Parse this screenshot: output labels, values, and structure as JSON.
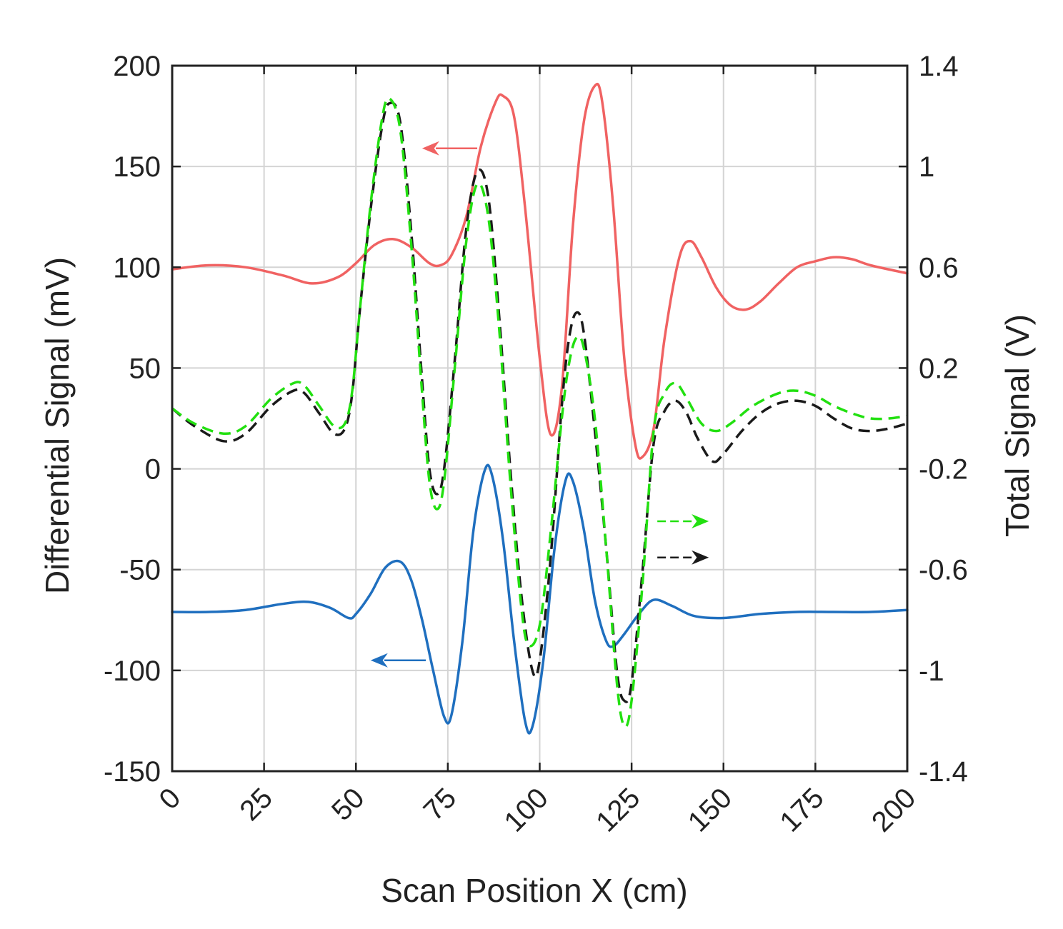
{
  "chart_data": {
    "type": "line",
    "xlabel": "Scan Position X (cm)",
    "ylabel": "Differential Signal (mV)",
    "y2label": "Total Signal (V)",
    "xlim": [
      0,
      200
    ],
    "ylim": [
      -150,
      200
    ],
    "y2lim": [
      -1.4,
      1.4
    ],
    "xticks": [
      "0",
      "25",
      "50",
      "75",
      "100",
      "125",
      "150",
      "175",
      "200"
    ],
    "yticks": [
      "-150",
      "-100",
      "-50",
      "0",
      "50",
      "100",
      "150",
      "200"
    ],
    "y2ticks": [
      "-1.4",
      "-1",
      "-0.6",
      "-0.2",
      "0.2",
      "0.6",
      "1",
      "1.4"
    ],
    "grid": true,
    "series": [
      {
        "axis": "left",
        "color": "#f06262",
        "style": "solid",
        "points": [
          [
            0,
            99
          ],
          [
            10,
            101
          ],
          [
            20,
            100
          ],
          [
            30,
            96
          ],
          [
            38,
            92
          ],
          [
            45,
            95
          ],
          [
            50,
            102
          ],
          [
            55,
            111
          ],
          [
            60,
            114
          ],
          [
            65,
            110
          ],
          [
            70,
            102
          ],
          [
            73,
            101
          ],
          [
            76,
            106
          ],
          [
            80,
            125
          ],
          [
            84,
            160
          ],
          [
            88,
            182
          ],
          [
            90,
            185
          ],
          [
            93,
            175
          ],
          [
            96,
            130
          ],
          [
            100,
            55
          ],
          [
            103,
            17
          ],
          [
            106,
            40
          ],
          [
            109,
            120
          ],
          [
            112,
            172
          ],
          [
            115,
            190
          ],
          [
            117,
            182
          ],
          [
            120,
            130
          ],
          [
            123,
            55
          ],
          [
            126,
            12
          ],
          [
            128,
            6
          ],
          [
            131,
            20
          ],
          [
            134,
            65
          ],
          [
            138,
            105
          ],
          [
            141,
            113
          ],
          [
            144,
            105
          ],
          [
            148,
            90
          ],
          [
            152,
            81
          ],
          [
            156,
            79
          ],
          [
            160,
            83
          ],
          [
            165,
            92
          ],
          [
            170,
            100
          ],
          [
            175,
            103
          ],
          [
            180,
            105
          ],
          [
            185,
            104
          ],
          [
            190,
            101
          ],
          [
            200,
            97
          ]
        ]
      },
      {
        "axis": "left",
        "color": "#1f6fbf",
        "style": "solid",
        "points": [
          [
            0,
            -71
          ],
          [
            10,
            -71
          ],
          [
            20,
            -70
          ],
          [
            30,
            -67
          ],
          [
            37,
            -66
          ],
          [
            43,
            -69
          ],
          [
            48,
            -74
          ],
          [
            50,
            -72
          ],
          [
            54,
            -62
          ],
          [
            58,
            -49
          ],
          [
            62,
            -46
          ],
          [
            65,
            -55
          ],
          [
            68,
            -75
          ],
          [
            71,
            -100
          ],
          [
            74,
            -123
          ],
          [
            76,
            -122
          ],
          [
            79,
            -85
          ],
          [
            82,
            -30
          ],
          [
            85,
            -1
          ],
          [
            87,
            -3
          ],
          [
            90,
            -35
          ],
          [
            93,
            -85
          ],
          [
            96,
            -125
          ],
          [
            98,
            -128
          ],
          [
            101,
            -95
          ],
          [
            104,
            -40
          ],
          [
            107,
            -6
          ],
          [
            109,
            -6
          ],
          [
            112,
            -30
          ],
          [
            115,
            -65
          ],
          [
            118,
            -85
          ],
          [
            120,
            -88
          ],
          [
            123,
            -82
          ],
          [
            127,
            -72
          ],
          [
            131,
            -65
          ],
          [
            136,
            -68
          ],
          [
            142,
            -73
          ],
          [
            150,
            -74
          ],
          [
            160,
            -72
          ],
          [
            170,
            -71
          ],
          [
            180,
            -71
          ],
          [
            190,
            -71
          ],
          [
            200,
            -70
          ]
        ]
      },
      {
        "axis": "right",
        "color": "#1a1a1a",
        "style": "dashed",
        "points": [
          [
            0,
            0.04
          ],
          [
            6,
            -0.03
          ],
          [
            14,
            -0.09
          ],
          [
            20,
            -0.06
          ],
          [
            27,
            0.05
          ],
          [
            33,
            0.11
          ],
          [
            36,
            0.1
          ],
          [
            40,
            0.02
          ],
          [
            44,
            -0.06
          ],
          [
            47,
            -0.04
          ],
          [
            49,
            0.1
          ],
          [
            51,
            0.42
          ],
          [
            54,
            0.83
          ],
          [
            57,
            1.15
          ],
          [
            59,
            1.25
          ],
          [
            62,
            1.18
          ],
          [
            65,
            0.75
          ],
          [
            68,
            0.15
          ],
          [
            70,
            -0.2
          ],
          [
            72,
            -0.3
          ],
          [
            74,
            -0.2
          ],
          [
            77,
            0.25
          ],
          [
            80,
            0.75
          ],
          [
            83,
            0.98
          ],
          [
            86,
            0.88
          ],
          [
            89,
            0.4
          ],
          [
            92,
            -0.2
          ],
          [
            95,
            -0.7
          ],
          [
            98,
            -1.0
          ],
          [
            100,
            -0.96
          ],
          [
            103,
            -0.55
          ],
          [
            106,
            0.05
          ],
          [
            108,
            0.32
          ],
          [
            110,
            0.42
          ],
          [
            112,
            0.34
          ],
          [
            115,
            -0.05
          ],
          [
            118,
            -0.5
          ],
          [
            121,
            -1.0
          ],
          [
            123,
            -1.12
          ],
          [
            125,
            -1.05
          ],
          [
            128,
            -0.6
          ],
          [
            131,
            -0.1
          ],
          [
            134,
            0.03
          ],
          [
            137,
            0.07
          ],
          [
            140,
            0.02
          ],
          [
            143,
            -0.08
          ],
          [
            147,
            -0.17
          ],
          [
            150,
            -0.14
          ],
          [
            155,
            -0.05
          ],
          [
            160,
            0.02
          ],
          [
            165,
            0.06
          ],
          [
            170,
            0.07
          ],
          [
            175,
            0.05
          ],
          [
            180,
            0.0
          ],
          [
            185,
            -0.04
          ],
          [
            190,
            -0.05
          ],
          [
            195,
            -0.04
          ],
          [
            200,
            -0.02
          ]
        ]
      },
      {
        "axis": "right",
        "color": "#22e010",
        "style": "dashed",
        "points": [
          [
            0,
            0.04
          ],
          [
            6,
            -0.02
          ],
          [
            14,
            -0.06
          ],
          [
            20,
            -0.03
          ],
          [
            27,
            0.08
          ],
          [
            33,
            0.14
          ],
          [
            36,
            0.13
          ],
          [
            40,
            0.05
          ],
          [
            44,
            -0.03
          ],
          [
            47,
            -0.02
          ],
          [
            49,
            0.11
          ],
          [
            51,
            0.42
          ],
          [
            54,
            0.85
          ],
          [
            57,
            1.18
          ],
          [
            59,
            1.27
          ],
          [
            62,
            1.15
          ],
          [
            65,
            0.7
          ],
          [
            68,
            0.1
          ],
          [
            70,
            -0.25
          ],
          [
            72,
            -0.36
          ],
          [
            74,
            -0.25
          ],
          [
            77,
            0.22
          ],
          [
            80,
            0.7
          ],
          [
            83,
            0.93
          ],
          [
            86,
            0.8
          ],
          [
            89,
            0.35
          ],
          [
            92,
            -0.25
          ],
          [
            95,
            -0.75
          ],
          [
            97,
            -0.9
          ],
          [
            100,
            -0.82
          ],
          [
            103,
            -0.45
          ],
          [
            106,
            0.0
          ],
          [
            108,
            0.22
          ],
          [
            110,
            0.32
          ],
          [
            112,
            0.28
          ],
          [
            115,
            0.0
          ],
          [
            118,
            -0.5
          ],
          [
            121,
            -1.05
          ],
          [
            123,
            -1.22
          ],
          [
            125,
            -1.12
          ],
          [
            128,
            -0.65
          ],
          [
            131,
            -0.05
          ],
          [
            134,
            0.1
          ],
          [
            137,
            0.14
          ],
          [
            140,
            0.08
          ],
          [
            144,
            -0.02
          ],
          [
            148,
            -0.05
          ],
          [
            152,
            -0.02
          ],
          [
            158,
            0.05
          ],
          [
            165,
            0.1
          ],
          [
            170,
            0.11
          ],
          [
            175,
            0.09
          ],
          [
            180,
            0.05
          ],
          [
            185,
            0.02
          ],
          [
            190,
            0.0
          ],
          [
            195,
            0.0
          ],
          [
            200,
            0.01
          ]
        ]
      }
    ],
    "arrows": [
      {
        "color": "#f06262",
        "style": "solid",
        "x": [
          83,
          68
        ],
        "y": 159
      },
      {
        "color": "#1f6fbf",
        "style": "solid",
        "x": [
          69,
          54
        ],
        "y": -95
      },
      {
        "color": "#22e010",
        "style": "dashed",
        "x": [
          132,
          146
        ],
        "y": -26
      },
      {
        "color": "#1a1a1a",
        "style": "dashed",
        "x": [
          132,
          146
        ],
        "y": -44
      }
    ]
  }
}
